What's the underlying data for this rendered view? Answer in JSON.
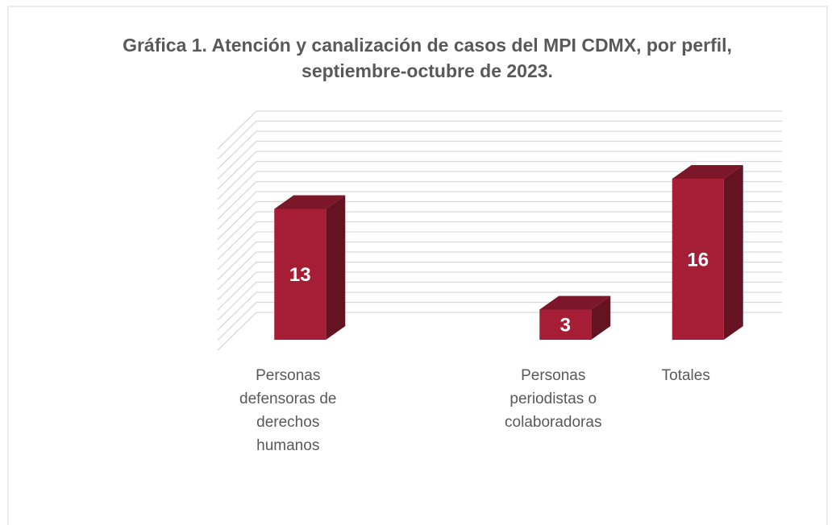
{
  "chart_data": {
    "type": "bar3d",
    "title": "Gráfica 1. Atención y canalización de casos del MPI CDMX, por perfil, septiembre-octubre de 2023.",
    "categories": [
      "Personas defensoras de derechos humanos",
      null,
      "Personas periodistas o colaboradoras",
      "Totales"
    ],
    "values": [
      13,
      null,
      3,
      16
    ],
    "color": "#a51e36",
    "ylim": [
      0,
      20
    ],
    "yticks": [
      0,
      1,
      2,
      3,
      4,
      5,
      6,
      7,
      8,
      9,
      10,
      11,
      12,
      13,
      14,
      15,
      16,
      17,
      18,
      19,
      20
    ],
    "grid": true
  }
}
